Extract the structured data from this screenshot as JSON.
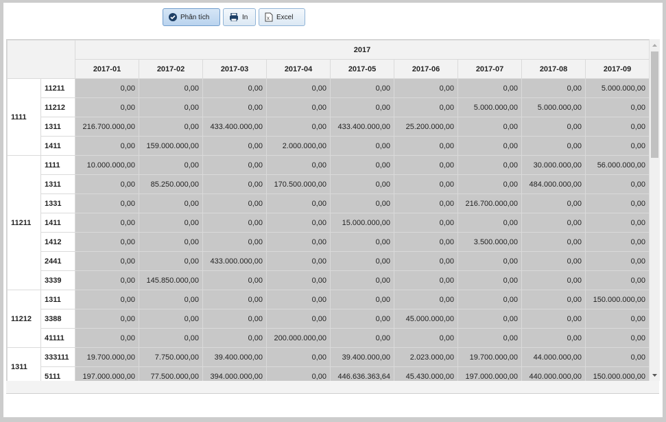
{
  "toolbar": {
    "buttons": [
      "Phân tích",
      "In",
      "Excel"
    ]
  },
  "table": {
    "year": "2017",
    "months": [
      "2017-01",
      "2017-02",
      "2017-03",
      "2017-04",
      "2017-05",
      "2017-06",
      "2017-07",
      "2017-08",
      "2017-09"
    ],
    "groups": [
      {
        "label": "1111",
        "rows": [
          {
            "label": "11211",
            "values": [
              "0,00",
              "0,00",
              "0,00",
              "0,00",
              "0,00",
              "0,00",
              "0,00",
              "0,00",
              "5.000.000,00"
            ]
          },
          {
            "label": "11212",
            "values": [
              "0,00",
              "0,00",
              "0,00",
              "0,00",
              "0,00",
              "0,00",
              "5.000.000,00",
              "5.000.000,00",
              "0,00"
            ]
          },
          {
            "label": "1311",
            "values": [
              "216.700.000,00",
              "0,00",
              "433.400.000,00",
              "0,00",
              "433.400.000,00",
              "25.200.000,00",
              "0,00",
              "0,00",
              "0,00"
            ]
          },
          {
            "label": "1411",
            "values": [
              "0,00",
              "159.000.000,00",
              "0,00",
              "2.000.000,00",
              "0,00",
              "0,00",
              "0,00",
              "0,00",
              "0,00"
            ]
          }
        ]
      },
      {
        "label": "11211",
        "rows": [
          {
            "label": "1111",
            "values": [
              "10.000.000,00",
              "0,00",
              "0,00",
              "0,00",
              "0,00",
              "0,00",
              "0,00",
              "30.000.000,00",
              "56.000.000,00"
            ]
          },
          {
            "label": "1311",
            "values": [
              "0,00",
              "85.250.000,00",
              "0,00",
              "170.500.000,00",
              "0,00",
              "0,00",
              "0,00",
              "484.000.000,00",
              "0,00"
            ]
          },
          {
            "label": "1331",
            "values": [
              "0,00",
              "0,00",
              "0,00",
              "0,00",
              "0,00",
              "0,00",
              "216.700.000,00",
              "0,00",
              "0,00"
            ]
          },
          {
            "label": "1411",
            "values": [
              "0,00",
              "0,00",
              "0,00",
              "0,00",
              "15.000.000,00",
              "0,00",
              "0,00",
              "0,00",
              "0,00"
            ]
          },
          {
            "label": "1412",
            "values": [
              "0,00",
              "0,00",
              "0,00",
              "0,00",
              "0,00",
              "0,00",
              "3.500.000,00",
              "0,00",
              "0,00"
            ]
          },
          {
            "label": "2441",
            "values": [
              "0,00",
              "0,00",
              "433.000.000,00",
              "0,00",
              "0,00",
              "0,00",
              "0,00",
              "0,00",
              "0,00"
            ]
          },
          {
            "label": "3339",
            "values": [
              "0,00",
              "145.850.000,00",
              "0,00",
              "0,00",
              "0,00",
              "0,00",
              "0,00",
              "0,00",
              "0,00"
            ]
          }
        ]
      },
      {
        "label": "11212",
        "rows": [
          {
            "label": "1311",
            "values": [
              "0,00",
              "0,00",
              "0,00",
              "0,00",
              "0,00",
              "0,00",
              "0,00",
              "0,00",
              "150.000.000,00"
            ]
          },
          {
            "label": "3388",
            "values": [
              "0,00",
              "0,00",
              "0,00",
              "0,00",
              "0,00",
              "45.000.000,00",
              "0,00",
              "0,00",
              "0,00"
            ]
          },
          {
            "label": "41111",
            "values": [
              "0,00",
              "0,00",
              "0,00",
              "200.000.000,00",
              "0,00",
              "0,00",
              "0,00",
              "0,00",
              "0,00"
            ]
          }
        ]
      },
      {
        "label": "1311",
        "rows": [
          {
            "label": "333111",
            "values": [
              "19.700.000,00",
              "7.750.000,00",
              "39.400.000,00",
              "0,00",
              "39.400.000,00",
              "2.023.000,00",
              "19.700.000,00",
              "44.000.000,00",
              "0,00"
            ]
          },
          {
            "label": "5111",
            "values": [
              "197.000.000,00",
              "77.500.000,00",
              "394.000.000,00",
              "0,00",
              "446.636.363,64",
              "45.430.000,00",
              "197.000.000,00",
              "440.000.000,00",
              "150.000.000,00"
            ]
          }
        ]
      }
    ]
  }
}
